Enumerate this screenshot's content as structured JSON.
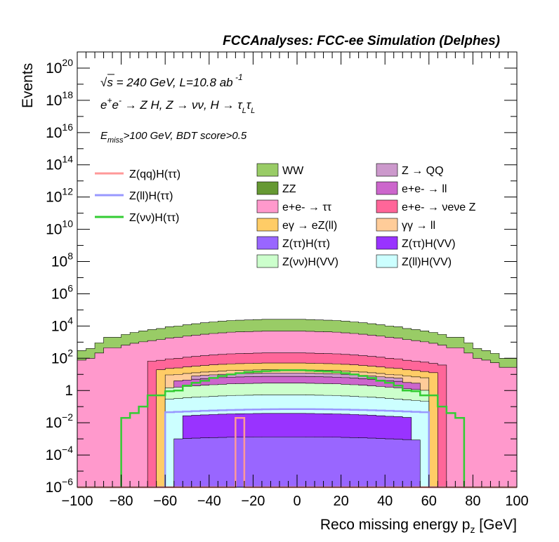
{
  "chart_data": {
    "type": "area",
    "title": "FCCAnalyses: FCC-ee Simulation (Delphes)",
    "xlabel": "Reco missing energy p_z [GeV]",
    "ylabel": "Events",
    "xlim": [
      -100,
      100
    ],
    "ylim": [
      1e-06,
      1e+21
    ],
    "yscale": "log",
    "x_ticks": [
      "−100",
      "−80",
      "−60",
      "−40",
      "−20",
      "0",
      "20",
      "40",
      "60",
      "80",
      "100"
    ],
    "y_ticks": [
      {
        "base": "10",
        "exp": "−6"
      },
      {
        "base": "10",
        "exp": "−4"
      },
      {
        "base": "10",
        "exp": "−2"
      },
      {
        "base": "1",
        "exp": ""
      },
      {
        "base": "10",
        "exp": "2"
      },
      {
        "base": "10",
        "exp": "4"
      },
      {
        "base": "10",
        "exp": "6"
      },
      {
        "base": "10",
        "exp": "8"
      },
      {
        "base": "10",
        "exp": "10"
      },
      {
        "base": "10",
        "exp": "12"
      },
      {
        "base": "10",
        "exp": "14"
      },
      {
        "base": "10",
        "exp": "16"
      },
      {
        "base": "10",
        "exp": "18"
      },
      {
        "base": "10",
        "exp": "20"
      }
    ],
    "annotations": {
      "energy": "√s = 240 GeV, L=10.8 ab⁻¹",
      "process": "e⁺e⁻ → Z H, Z → νν, H → τLτL",
      "cuts": "Emiss>100 GeV, BDT score>0.5"
    },
    "legend_position": "upper-middle",
    "stack_order": [
      "ZZ",
      "WW",
      "e+e- → ττ",
      "e+e- → νeνe Z",
      "eγ → eZ(ll)",
      "γγ → ll",
      "Z → QQ",
      "e+e- → ll",
      "Z(νν)H(VV)",
      "Z(ll)H(VV)",
      "Z(ττ)H(VV)",
      "Z(ττ)H(ττ)"
    ],
    "backgrounds": [
      {
        "name": "WW",
        "color": "#99cc66"
      },
      {
        "name": "Z → QQ",
        "color": "#cc99cc"
      },
      {
        "name": "ZZ",
        "color": "#669933"
      },
      {
        "name": "e+e- → ll",
        "color": "#cc66cc"
      },
      {
        "name": "e+e- → ττ",
        "color": "#ff99cc"
      },
      {
        "name": "e+e- → νeνe Z",
        "color": "#ff6699"
      },
      {
        "name": "eγ → eZ(ll)",
        "color": "#ffcc66"
      },
      {
        "name": "γγ → ll",
        "color": "#ffcc99"
      },
      {
        "name": "Z(ττ)H(ττ)",
        "color": "#9966ff"
      },
      {
        "name": "Z(ττ)H(VV)",
        "color": "#9933ff"
      },
      {
        "name": "Z(νν)H(VV)",
        "color": "#ccffcc"
      },
      {
        "name": "Z(ll)H(VV)",
        "color": "#ccffff"
      }
    ],
    "signals": [
      {
        "name": "Z(qq)H(ττ)",
        "color": "#ff9999"
      },
      {
        "name": "Z(ll)H(ττ)",
        "color": "#9999ff"
      },
      {
        "name": "Z(νν)H(ττ)",
        "color": "#33cc33"
      }
    ],
    "bins": {
      "x_low": -100,
      "width": 4,
      "total_stack": [
        300.0,
        400.0,
        900.0,
        2000.0,
        2000.0,
        3000.0,
        4000.0,
        5000.0,
        6000.0,
        7000.0,
        9000.0,
        10000.0,
        12000.0,
        14000.0,
        16000.0,
        18000.0,
        20000.0,
        22000.0,
        23000.0,
        24000.0,
        25000.0,
        26000.0,
        26000.0,
        26000.0,
        26000.0,
        26000.0,
        25000.0,
        24000.0,
        23000.0,
        22000.0,
        20000.0,
        18000.0,
        16000.0,
        14000.0,
        12000.0,
        10000.0,
        9000.0,
        7000.0,
        6000.0,
        5000.0,
        4000.0,
        3000.0,
        2000.0,
        2000.0,
        900.0,
        400.0,
        300.0,
        200.0,
        100.0,
        100.0
      ],
      "zz_top": [
        1e-06,
        1e-06,
        1e-06,
        1e-06,
        1e-06,
        1e-06,
        1e-06,
        1e-06,
        1e-06,
        1e-06,
        1e-06,
        1e-06,
        1e-06,
        1e-06,
        1e-06,
        1e-06,
        1e-06,
        1e-06,
        1e-06,
        1e-06,
        1e-06,
        1e-06,
        1e-06,
        1e-06,
        1e-06,
        1e-06,
        1e-06,
        1e-06,
        1e-06,
        1e-06,
        1e-06,
        1e-06,
        1e-06,
        1e-06,
        1e-06,
        1e-06,
        1e-06,
        1e-06,
        1e-06,
        1e-06,
        1e-06,
        1e-06,
        1e-06,
        1e-06,
        1e-06,
        1e-06,
        1e-06,
        1e-06,
        1e-06,
        1e-06
      ],
      "zh_nunu_tautau": [
        1e-06,
        1e-06,
        1e-06,
        1e-06,
        1e-06,
        0.02,
        0.04,
        0.1,
        0.5,
        0.5,
        0.9,
        1,
        2,
        3,
        4,
        6,
        8,
        10,
        12,
        14,
        15,
        16,
        17,
        18,
        18,
        18,
        17,
        16,
        15,
        14,
        12,
        10,
        8,
        6,
        4,
        3,
        2,
        1,
        0.9,
        0.5,
        0.5,
        0.1,
        0.04,
        0.02,
        1e-06,
        1e-06,
        1e-06,
        1e-06,
        1e-06,
        1e-06
      ]
    }
  }
}
